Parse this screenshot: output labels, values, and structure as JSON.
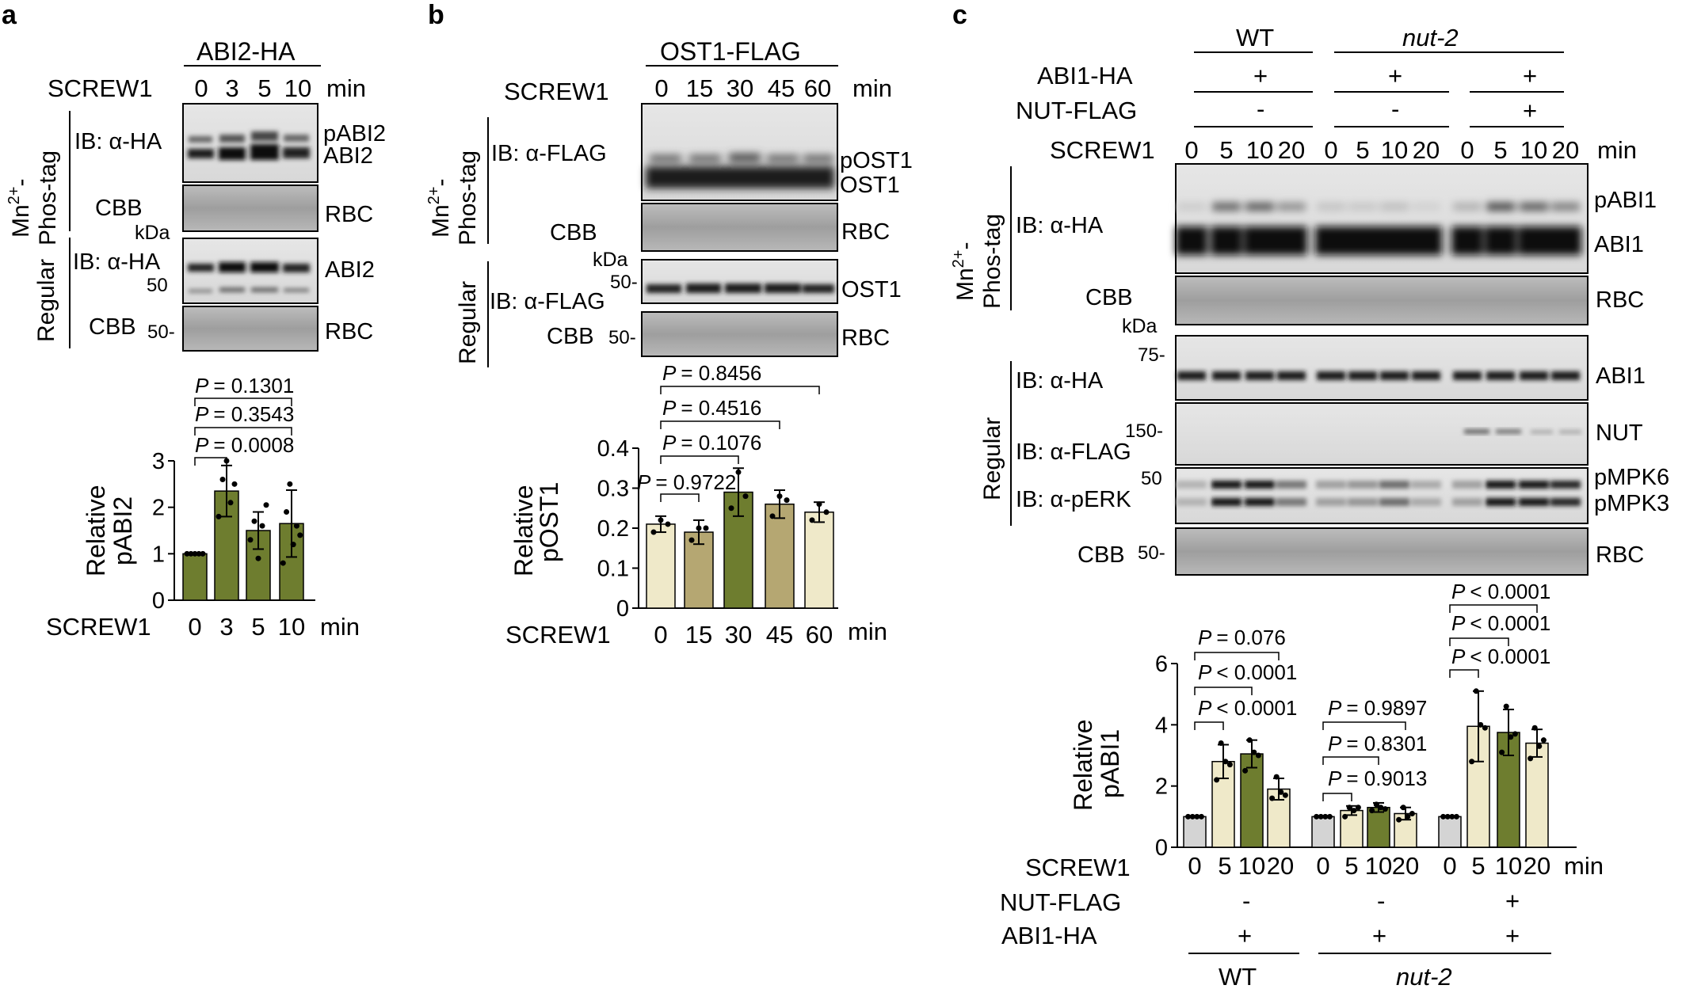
{
  "panel_a": {
    "letter": "a",
    "construct": "ABI2-HA",
    "treatment": "SCREW1",
    "times": [
      "0",
      "3",
      "5",
      "10"
    ],
    "unit": "min",
    "gel_mn": "Mn",
    "gel_mn_sup": "2+",
    "gel_mn_dash": "-",
    "gel_phostag": "Phos-tag",
    "gel_regular": "Regular",
    "ib_ha_1": "IB: α-HA",
    "ib_ha_2": "IB: α-HA",
    "cbb_1": "CBB",
    "cbb_2": "CBB",
    "kda": "kDa",
    "mw_50a": "50",
    "mw_50b": "50-",
    "band_pabi2": "pABI2",
    "band_abi2": "ABI2",
    "band_abi2_reg": "ABI2",
    "band_rbc_1": "RBC",
    "band_rbc_2": "RBC",
    "ylabel_1": "Relative",
    "ylabel_2": "pABI2",
    "p1": "= 0.1301",
    "p2": "= 0.3543",
    "p3": "= 0.0008",
    "p_letter": "P",
    "xaxis_treatment": "SCREW1",
    "xaxis_unit": "min"
  },
  "panel_b": {
    "letter": "b",
    "construct": "OST1-FLAG",
    "treatment": "SCREW1",
    "times": [
      "0",
      "15",
      "30",
      "45",
      "60"
    ],
    "unit": "min",
    "gel_mn": "Mn",
    "gel_mn_sup": "2+",
    "gel_mn_dash": "-",
    "gel_phostag": "Phos-tag",
    "gel_regular": "Regular",
    "ib_flag_1": "IB: α-FLAG",
    "ib_flag_2": "IB: α-FLAG",
    "cbb_1": "CBB",
    "cbb_2": "CBB",
    "kda": "kDa",
    "mw_50a": "50-",
    "mw_50b": "50-",
    "band_post1": "pOST1",
    "band_ost1": "OST1",
    "band_ost1_reg": "OST1",
    "band_rbc_1": "RBC",
    "band_rbc_2": "RBC",
    "ylabel_1": "Relative",
    "ylabel_2": "pOST1",
    "p1": "= 0.8456",
    "p2": "= 0.4516",
    "p3": "= 0.1076",
    "p4": "= 0.9722",
    "p_letter": "P",
    "xaxis_treatment": "SCREW1",
    "xaxis_unit": "min"
  },
  "panel_c": {
    "letter": "c",
    "group_wt": "WT",
    "group_nut": "nut-2",
    "row_abi1": "ABI1-HA",
    "row_nut": "NUT-FLAG",
    "plus": "+",
    "minus": "-",
    "treatment": "SCREW1",
    "times": [
      "0",
      "5",
      "10",
      "20"
    ],
    "unit": "min",
    "gel_mn": "Mn",
    "gel_mn_sup": "2+",
    "gel_mn_dash": "-",
    "gel_phostag": "Phos-tag",
    "gel_regular": "Regular",
    "ib_ha_1": "IB: α-HA",
    "ib_ha_2": "IB: α-HA",
    "ib_flag": "IB: α-FLAG",
    "ib_perk": "IB: α-pERK",
    "cbb_1": "CBB",
    "cbb_2": "CBB",
    "kda": "kDa",
    "mw_75": "75-",
    "mw_150": "150-",
    "mw_50a": "50",
    "mw_50b": "50-",
    "band_pabi1": "pABI1",
    "band_abi1": "ABI1",
    "band_abi1_reg": "ABI1",
    "band_nut": "NUT",
    "band_pmpk6": "pMPK6",
    "band_pmpk3": "pMPK3",
    "band_rbc_1": "RBC",
    "band_rbc_2": "RBC",
    "ylabel_1": "Relative",
    "ylabel_2": "pABI1",
    "p_letter": "P",
    "p_wt_1": "= 0.076",
    "p_wt_2": "< 0.0001",
    "p_wt_3": "< 0.0001",
    "p_nut_1": "= 0.9897",
    "p_nut_2": "= 0.8301",
    "p_nut_3": "= 0.9013",
    "p_nf_1": "< 0.0001",
    "p_nf_2": "< 0.0001",
    "p_nf_3": "< 0.0001",
    "xaxis_treatment": "SCREW1",
    "xaxis_nut": "NUT-FLAG",
    "xaxis_abi1": "ABI1-HA",
    "xaxis_times": [
      "0",
      "5",
      "10",
      "20"
    ],
    "xaxis_unit": "min",
    "xaxis_wt": "WT",
    "xaxis_nut2": "nut-2"
  },
  "chart_data": [
    {
      "type": "bar",
      "panel": "a",
      "categories": [
        "0",
        "3",
        "5",
        "10"
      ],
      "values": [
        1.0,
        2.35,
        1.5,
        1.65
      ],
      "errors": [
        0.0,
        0.55,
        0.4,
        0.72
      ],
      "points": [
        [
          1,
          1,
          1,
          1,
          1
        ],
        [
          1.8,
          2.6,
          3.0,
          2.1,
          2.5
        ],
        [
          1.3,
          1.7,
          0.9,
          1.6,
          2.05
        ],
        [
          0.8,
          1.9,
          2.5,
          1.2,
          1.6,
          1.4
        ]
      ],
      "bar_colors": [
        "#6e7d2f",
        "#6e7d2f",
        "#6e7d2f",
        "#6e7d2f"
      ],
      "ylim": [
        0,
        3
      ],
      "yticks": [
        0,
        1,
        2,
        3
      ],
      "xlabel": "SCREW1 min",
      "ylabel": "Relative pABI2"
    },
    {
      "type": "bar",
      "panel": "b",
      "categories": [
        "0",
        "15",
        "30",
        "45",
        "60"
      ],
      "values": [
        0.21,
        0.19,
        0.29,
        0.26,
        0.24
      ],
      "errors": [
        0.02,
        0.03,
        0.06,
        0.035,
        0.025
      ],
      "points": [
        [
          0.19,
          0.22,
          0.21
        ],
        [
          0.17,
          0.2,
          0.2
        ],
        [
          0.25,
          0.34,
          0.28
        ],
        [
          0.23,
          0.28,
          0.27
        ],
        [
          0.22,
          0.26,
          0.24
        ]
      ],
      "bar_colors": [
        "#efe9c9",
        "#b5a772",
        "#6e7d2f",
        "#b5a772",
        "#efe9c9"
      ],
      "ylim": [
        0,
        0.4
      ],
      "yticks": [
        0,
        0.1,
        0.2,
        0.3,
        0.4
      ],
      "xlabel": "SCREW1 min",
      "ylabel": "Relative pOST1"
    },
    {
      "type": "bar",
      "panel": "c",
      "categories": [
        "WT 0",
        "WT 5",
        "WT 10",
        "WT 20",
        "nut-2 0",
        "nut-2 5",
        "nut-2 10",
        "nut-2 20",
        "nut-2+NUT 0",
        "nut-2+NUT 5",
        "nut-2+NUT 10",
        "nut-2+NUT 20"
      ],
      "values": [
        1.0,
        2.8,
        3.05,
        1.9,
        1.0,
        1.2,
        1.3,
        1.1,
        1.0,
        3.95,
        3.75,
        3.4
      ],
      "errors": [
        0.0,
        0.55,
        0.45,
        0.35,
        0.0,
        0.15,
        0.15,
        0.2,
        0.0,
        1.15,
        0.75,
        0.45
      ],
      "points": [
        [
          1,
          1,
          1,
          1
        ],
        [
          2.2,
          3.4,
          2.8,
          2.7
        ],
        [
          2.5,
          3.5,
          3.1,
          3.0
        ],
        [
          1.6,
          2.3,
          1.8,
          1.7
        ],
        [
          1,
          1,
          1,
          1
        ],
        [
          1.0,
          1.3,
          1.2,
          1.3
        ],
        [
          1.2,
          1.4,
          1.3,
          1.25
        ],
        [
          0.9,
          1.3,
          1.0,
          1.1
        ],
        [
          1,
          1,
          1,
          1
        ],
        [
          2.8,
          5.1,
          4.0,
          3.9
        ],
        [
          3.1,
          4.6,
          3.6,
          3.7
        ],
        [
          2.9,
          3.9,
          3.3,
          3.5
        ]
      ],
      "bar_colors": [
        "#d4d4d4",
        "#efe9c9",
        "#6e7d2f",
        "#efe9c9",
        "#d4d4d4",
        "#efe9c9",
        "#6e7d2f",
        "#efe9c9",
        "#d4d4d4",
        "#efe9c9",
        "#6e7d2f",
        "#efe9c9"
      ],
      "ylim": [
        0,
        6
      ],
      "yticks": [
        0,
        2,
        4,
        6
      ],
      "xlabel": "SCREW1 min",
      "ylabel": "Relative pABI1"
    }
  ]
}
